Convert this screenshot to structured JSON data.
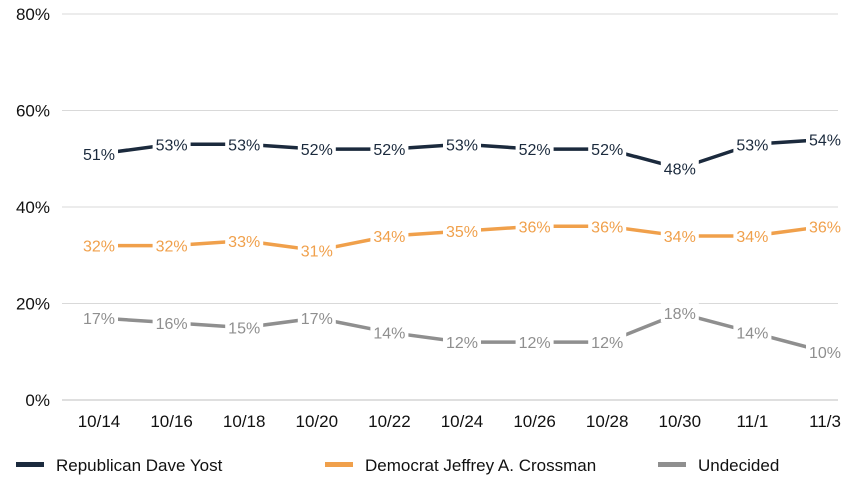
{
  "chart_data": {
    "type": "line",
    "title": "",
    "xlabel": "",
    "ylabel": "",
    "categories": [
      "10/14",
      "10/16",
      "10/18",
      "10/20",
      "10/22",
      "10/24",
      "10/26",
      "10/28",
      "10/30",
      "11/1",
      "11/3"
    ],
    "ylim": [
      0,
      80
    ],
    "yticks": [
      "0%",
      "20%",
      "40%",
      "60%",
      "80%"
    ],
    "grid": true,
    "legend_position": "bottom",
    "series": [
      {
        "name": "Republican Dave Yost",
        "color": "#1b2a3d",
        "values": [
          51,
          53,
          53,
          52,
          52,
          53,
          52,
          52,
          48,
          53,
          54
        ],
        "labels": [
          "51%",
          "53%",
          "53%",
          "52%",
          "52%",
          "53%",
          "52%",
          "52%",
          "48%",
          "53%",
          "54%"
        ]
      },
      {
        "name": "Democrat Jeffrey A. Crossman",
        "color": "#f0a04b",
        "values": [
          32,
          32,
          33,
          31,
          34,
          35,
          36,
          36,
          34,
          34,
          36
        ],
        "labels": [
          "32%",
          "32%",
          "33%",
          "31%",
          "34%",
          "35%",
          "36%",
          "36%",
          "34%",
          "34%",
          "36%"
        ]
      },
      {
        "name": "Undecided",
        "color": "#8f8f8f",
        "values": [
          17,
          16,
          15,
          17,
          14,
          12,
          12,
          12,
          18,
          14,
          10
        ],
        "labels": [
          "17%",
          "16%",
          "15%",
          "17%",
          "14%",
          "12%",
          "12%",
          "12%",
          "18%",
          "14%",
          "10%"
        ]
      }
    ]
  }
}
